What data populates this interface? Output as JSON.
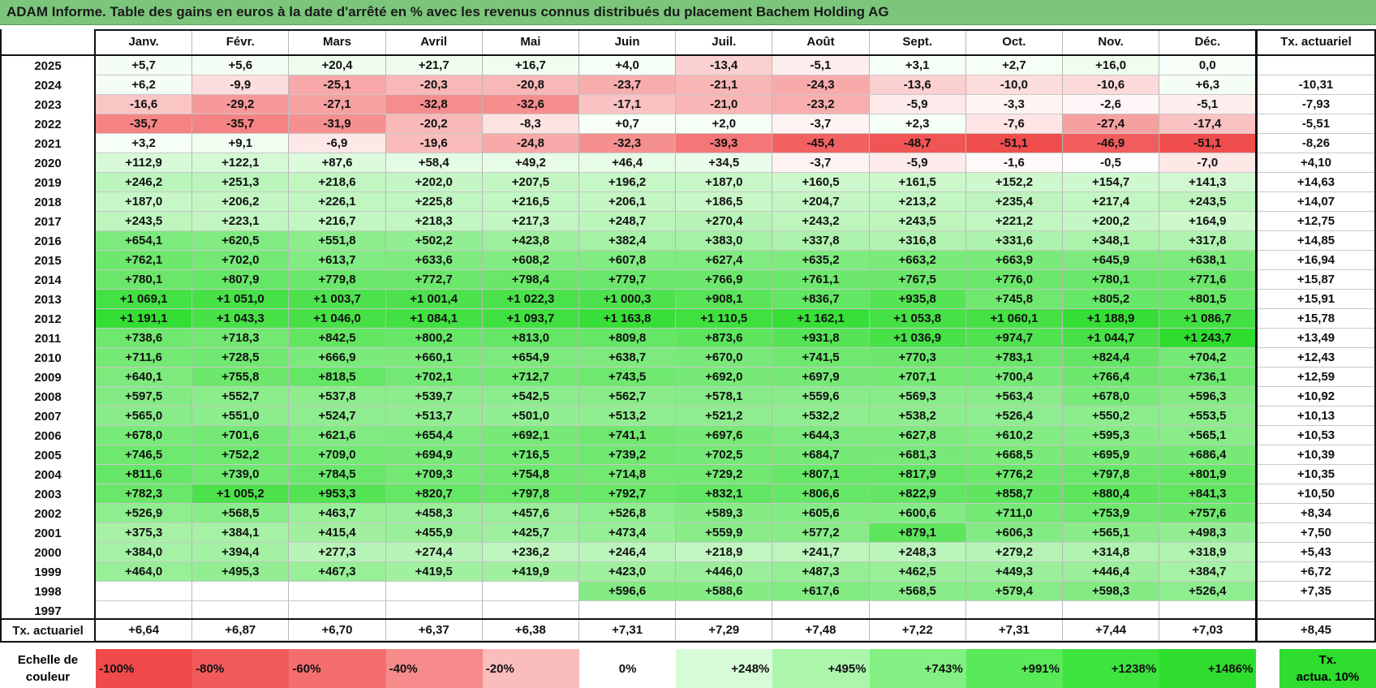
{
  "title": "ADAM Informe. Table des gains en euros à la date d'arrêté en % avec les revenus connus distribués du placement Bachem Holding AG",
  "chart_data": {
    "type": "heatmap",
    "title": "ADAM Informe. Table des gains en euros à la date d'arrêté en % avec les revenus connus distribués du placement Bachem Holding AG",
    "columns": [
      "Janv.",
      "Févr.",
      "Mars",
      "Avril",
      "Mai",
      "Juin",
      "Juil.",
      "Août",
      "Sept.",
      "Oct.",
      "Nov.",
      "Déc."
    ],
    "rate_column_header": "Tx. actuariel",
    "rows": [
      {
        "year": "2025",
        "values": [
          "+5,7",
          "+5,6",
          "+20,4",
          "+21,7",
          "+16,7",
          "+4,0",
          "-13,4",
          "-5,1",
          "+3,1",
          "+2,7",
          "+16,0",
          "0,0"
        ],
        "rate": ""
      },
      {
        "year": "2024",
        "values": [
          "+6,2",
          "-9,9",
          "-25,1",
          "-20,3",
          "-20,8",
          "-23,7",
          "-21,1",
          "-24,3",
          "-13,6",
          "-10,0",
          "-10,6",
          "+6,3"
        ],
        "rate": "-10,31"
      },
      {
        "year": "2023",
        "values": [
          "-16,6",
          "-29,2",
          "-27,1",
          "-32,8",
          "-32,6",
          "-17,1",
          "-21,0",
          "-23,2",
          "-5,9",
          "-3,3",
          "-2,6",
          "-5,1"
        ],
        "rate": "-7,93"
      },
      {
        "year": "2022",
        "values": [
          "-35,7",
          "-35,7",
          "-31,9",
          "-20,2",
          "-8,3",
          "+0,7",
          "+2,0",
          "-3,7",
          "+2,3",
          "-7,6",
          "-27,4",
          "-17,4"
        ],
        "rate": "-5,51"
      },
      {
        "year": "2021",
        "values": [
          "+3,2",
          "+9,1",
          "-6,9",
          "-19,6",
          "-24,8",
          "-32,3",
          "-39,3",
          "-45,4",
          "-48,7",
          "-51,1",
          "-46,9",
          "-51,1"
        ],
        "rate": "-8,26"
      },
      {
        "year": "2020",
        "values": [
          "+112,9",
          "+122,1",
          "+87,6",
          "+58,4",
          "+49,2",
          "+46,4",
          "+34,5",
          "-3,7",
          "-5,9",
          "-1,6",
          "-0,5",
          "-7,0"
        ],
        "rate": "+4,10"
      },
      {
        "year": "2019",
        "values": [
          "+246,2",
          "+251,3",
          "+218,6",
          "+202,0",
          "+207,5",
          "+196,2",
          "+187,0",
          "+160,5",
          "+161,5",
          "+152,2",
          "+154,7",
          "+141,3"
        ],
        "rate": "+14,63"
      },
      {
        "year": "2018",
        "values": [
          "+187,0",
          "+206,2",
          "+226,1",
          "+225,8",
          "+216,5",
          "+206,1",
          "+186,5",
          "+204,7",
          "+213,2",
          "+235,4",
          "+217,4",
          "+243,5"
        ],
        "rate": "+14,07"
      },
      {
        "year": "2017",
        "values": [
          "+243,5",
          "+223,1",
          "+216,7",
          "+218,3",
          "+217,3",
          "+248,7",
          "+270,4",
          "+243,2",
          "+243,5",
          "+221,2",
          "+200,2",
          "+164,9"
        ],
        "rate": "+12,75"
      },
      {
        "year": "2016",
        "values": [
          "+654,1",
          "+620,5",
          "+551,8",
          "+502,2",
          "+423,8",
          "+382,4",
          "+383,0",
          "+337,8",
          "+316,8",
          "+331,6",
          "+348,1",
          "+317,8"
        ],
        "rate": "+14,85"
      },
      {
        "year": "2015",
        "values": [
          "+762,1",
          "+702,0",
          "+613,7",
          "+633,6",
          "+608,2",
          "+607,8",
          "+627,4",
          "+635,2",
          "+663,2",
          "+663,9",
          "+645,9",
          "+638,1"
        ],
        "rate": "+16,94"
      },
      {
        "year": "2014",
        "values": [
          "+780,1",
          "+807,9",
          "+779,8",
          "+772,7",
          "+798,4",
          "+779,7",
          "+766,9",
          "+761,1",
          "+767,5",
          "+776,0",
          "+780,1",
          "+771,6"
        ],
        "rate": "+15,87"
      },
      {
        "year": "2013",
        "values": [
          "+1 069,1",
          "+1 051,0",
          "+1 003,7",
          "+1 001,4",
          "+1 022,3",
          "+1 000,3",
          "+908,1",
          "+836,7",
          "+935,8",
          "+745,8",
          "+805,2",
          "+801,5"
        ],
        "rate": "+15,91"
      },
      {
        "year": "2012",
        "values": [
          "+1 191,1",
          "+1 043,3",
          "+1 046,0",
          "+1 084,1",
          "+1 093,7",
          "+1 163,8",
          "+1 110,5",
          "+1 162,1",
          "+1 053,8",
          "+1 060,1",
          "+1 188,9",
          "+1 086,7"
        ],
        "rate": "+15,78"
      },
      {
        "year": "2011",
        "values": [
          "+738,6",
          "+718,3",
          "+842,5",
          "+800,2",
          "+813,0",
          "+809,8",
          "+873,6",
          "+931,8",
          "+1 036,9",
          "+974,7",
          "+1 044,7",
          "+1 243,7"
        ],
        "rate": "+13,49"
      },
      {
        "year": "2010",
        "values": [
          "+711,6",
          "+728,5",
          "+666,9",
          "+660,1",
          "+654,9",
          "+638,7",
          "+670,0",
          "+741,5",
          "+770,3",
          "+783,1",
          "+824,4",
          "+704,2"
        ],
        "rate": "+12,43"
      },
      {
        "year": "2009",
        "values": [
          "+640,1",
          "+755,8",
          "+818,5",
          "+702,1",
          "+712,7",
          "+743,5",
          "+692,0",
          "+697,9",
          "+707,1",
          "+700,4",
          "+766,4",
          "+736,1"
        ],
        "rate": "+12,59"
      },
      {
        "year": "2008",
        "values": [
          "+597,5",
          "+552,7",
          "+537,8",
          "+539,7",
          "+542,5",
          "+562,7",
          "+578,1",
          "+559,6",
          "+569,3",
          "+563,4",
          "+678,0",
          "+596,3"
        ],
        "rate": "+10,92"
      },
      {
        "year": "2007",
        "values": [
          "+565,0",
          "+551,0",
          "+524,7",
          "+513,7",
          "+501,0",
          "+513,2",
          "+521,2",
          "+532,2",
          "+538,2",
          "+526,4",
          "+550,2",
          "+553,5"
        ],
        "rate": "+10,13"
      },
      {
        "year": "2006",
        "values": [
          "+678,0",
          "+701,6",
          "+621,6",
          "+654,4",
          "+692,1",
          "+741,1",
          "+697,6",
          "+644,3",
          "+627,8",
          "+610,2",
          "+595,3",
          "+565,1"
        ],
        "rate": "+10,53"
      },
      {
        "year": "2005",
        "values": [
          "+746,5",
          "+752,2",
          "+709,0",
          "+694,9",
          "+716,5",
          "+739,2",
          "+702,5",
          "+684,7",
          "+681,3",
          "+668,5",
          "+695,9",
          "+686,4"
        ],
        "rate": "+10,39"
      },
      {
        "year": "2004",
        "values": [
          "+811,6",
          "+739,0",
          "+784,5",
          "+709,3",
          "+754,8",
          "+714,8",
          "+729,2",
          "+807,1",
          "+817,9",
          "+776,2",
          "+797,8",
          "+801,9"
        ],
        "rate": "+10,35"
      },
      {
        "year": "2003",
        "values": [
          "+782,3",
          "+1 005,2",
          "+953,3",
          "+820,7",
          "+797,8",
          "+792,7",
          "+832,1",
          "+806,6",
          "+822,9",
          "+858,7",
          "+880,4",
          "+841,3"
        ],
        "rate": "+10,50"
      },
      {
        "year": "2002",
        "values": [
          "+526,9",
          "+568,5",
          "+463,7",
          "+458,3",
          "+457,6",
          "+526,8",
          "+589,3",
          "+605,6",
          "+600,6",
          "+711,0",
          "+753,9",
          "+757,6"
        ],
        "rate": "+8,34"
      },
      {
        "year": "2001",
        "values": [
          "+375,3",
          "+384,1",
          "+415,4",
          "+455,9",
          "+425,7",
          "+473,4",
          "+559,9",
          "+577,2",
          "+879,1",
          "+606,3",
          "+565,1",
          "+498,3"
        ],
        "rate": "+7,50"
      },
      {
        "year": "2000",
        "values": [
          "+384,0",
          "+394,4",
          "+277,3",
          "+274,4",
          "+236,2",
          "+246,4",
          "+218,9",
          "+241,7",
          "+248,3",
          "+279,2",
          "+314,8",
          "+318,9"
        ],
        "rate": "+5,43"
      },
      {
        "year": "1999",
        "values": [
          "+464,0",
          "+495,3",
          "+467,3",
          "+419,5",
          "+419,9",
          "+423,0",
          "+446,0",
          "+487,3",
          "+462,5",
          "+449,3",
          "+446,4",
          "+384,7"
        ],
        "rate": "+6,72"
      },
      {
        "year": "1998",
        "values": [
          "",
          "",
          "",
          "",
          "",
          "+596,6",
          "+588,6",
          "+617,6",
          "+568,5",
          "+579,4",
          "+598,3",
          "+526,4"
        ],
        "rate": "+7,35"
      },
      {
        "year": "1997",
        "values": [
          "",
          "",
          "",
          "",
          "",
          "",
          "",
          "",
          "",
          "",
          "",
          ""
        ],
        "rate": ""
      }
    ],
    "footer": {
      "label": "Tx. actuariel",
      "values": [
        "+6,64",
        "+6,87",
        "+6,70",
        "+6,37",
        "+6,38",
        "+7,31",
        "+7,29",
        "+7,48",
        "+7,22",
        "+7,31",
        "+7,44",
        "+7,03"
      ],
      "rate": "+8,45"
    },
    "legend": {
      "label_line1": "Echelle de",
      "label_line2": "couleur",
      "items": [
        {
          "label": "-100%",
          "color": "#f04a4a"
        },
        {
          "label": "-80%",
          "color": "#f25a5a"
        },
        {
          "label": "-60%",
          "color": "#f46e6e"
        },
        {
          "label": "-40%",
          "color": "#f78b8b"
        },
        {
          "label": "-20%",
          "color": "#fbbcbc"
        },
        {
          "label": "0%",
          "color": "#ffffff"
        },
        {
          "label": "+248%",
          "color": "#d7fbd7"
        },
        {
          "label": "+495%",
          "color": "#acf6ac"
        },
        {
          "label": "+743%",
          "color": "#82f082"
        },
        {
          "label": "+991%",
          "color": "#59ea59"
        },
        {
          "label": "+1238%",
          "color": "#3ee43e"
        },
        {
          "label": "+1486%",
          "color": "#2edd2e"
        }
      ],
      "rate_label_line1": "Tx.",
      "rate_label_line2": "actua. 10%",
      "rate_color": "#2edd2e"
    },
    "colors": {
      "title_bar": "#7bc67b",
      "negative_max": "#f04a4a",
      "positive_max": "#2edd2e"
    }
  }
}
